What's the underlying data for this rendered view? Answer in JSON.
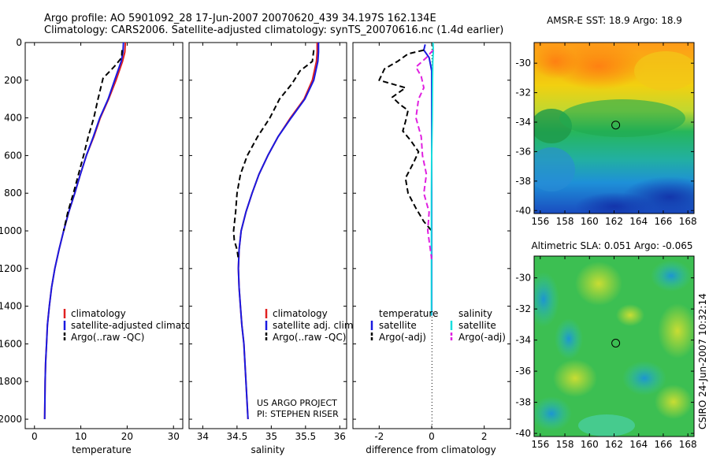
{
  "header": {
    "title_line1": "Argo profile: AO 5901092_28 17-Jun-2007 20070620_439 34.197S 162.134E",
    "title_line2": "Climatology: CARS2006. Satellite-adjusted climatology: synTS_20070616.nc (1.4d earlier)"
  },
  "footer": {
    "project_line1": "US ARGO PROJECT",
    "project_line2": "PI: STEPHEN RISER",
    "timestamp": "CSIRO 24-Jun-2007 10:32:14"
  },
  "colors": {
    "climatology": "#e02020",
    "satellite": "#1a1ae0",
    "argo": "#000000",
    "satellite_salinity": "#18dede",
    "argo_salinity": "#e020e0"
  },
  "chart_data": [
    {
      "type": "line",
      "id": "temperature",
      "xlabel": "temperature",
      "ylabel": "",
      "xlim": [
        -2,
        32
      ],
      "ylim": [
        2050,
        0
      ],
      "xticks": [
        0,
        10,
        20,
        30
      ],
      "yticks": [
        0,
        200,
        400,
        600,
        800,
        1000,
        1200,
        1400,
        1600,
        1800,
        2000
      ],
      "legend": [
        "climatology",
        "satellite-adjusted climatology",
        "Argo(..raw -QC)"
      ],
      "series": [
        {
          "name": "climatology",
          "color": "#e02020",
          "dash": "solid",
          "x": [
            19.6,
            19.5,
            19.0,
            17.6,
            16.0,
            14.2,
            12.8,
            11.2,
            9.9,
            8.7,
            7.4,
            6.3,
            5.3,
            4.4,
            3.7,
            3.2,
            2.8,
            2.6,
            2.4,
            2.3,
            2.2
          ],
          "y": [
            0,
            50,
            100,
            200,
            300,
            400,
            500,
            600,
            700,
            800,
            900,
            1000,
            1100,
            1200,
            1300,
            1400,
            1500,
            1600,
            1700,
            1800,
            2000
          ]
        },
        {
          "name": "satellite-adjusted climatology",
          "color": "#1a1ae0",
          "dash": "solid",
          "x": [
            19.2,
            19.1,
            18.7,
            17.3,
            15.9,
            14.1,
            12.7,
            11.2,
            9.9,
            8.7,
            7.4,
            6.3,
            5.3,
            4.4,
            3.7,
            3.2,
            2.8,
            2.6,
            2.4,
            2.3,
            2.2
          ],
          "y": [
            0,
            50,
            100,
            200,
            300,
            400,
            500,
            600,
            700,
            800,
            900,
            1000,
            1100,
            1200,
            1300,
            1400,
            1500,
            1600,
            1700,
            1800,
            2000
          ]
        },
        {
          "name": "Argo(..raw -QC)",
          "color": "#000000",
          "dash": "dash",
          "x": [
            18.9,
            18.8,
            17.5,
            14.8,
            13.7,
            12.8,
            11.6,
            10.6,
            9.5,
            8.4,
            7.2,
            6.3
          ],
          "y": [
            40,
            80,
            120,
            190,
            300,
            400,
            500,
            600,
            700,
            800,
            900,
            1000
          ]
        }
      ]
    },
    {
      "type": "line",
      "id": "salinity",
      "xlabel": "salinity",
      "ylabel": "",
      "xlim": [
        33.8,
        36.1
      ],
      "ylim": [
        2050,
        0
      ],
      "xticks": [
        34,
        34.5,
        35,
        35.5,
        36
      ],
      "legend": [
        "climatology",
        "satellite adj. clim.",
        "Argo(..raw -QC)"
      ],
      "series": [
        {
          "name": "climatology",
          "color": "#e02020",
          "dash": "solid",
          "x": [
            35.67,
            35.67,
            35.66,
            35.6,
            35.48,
            35.28,
            35.1,
            34.95,
            34.82,
            34.72,
            34.63,
            34.56,
            34.53,
            34.52,
            34.53,
            34.55,
            34.57,
            34.6,
            34.63,
            34.66
          ],
          "y": [
            0,
            50,
            100,
            200,
            300,
            400,
            500,
            600,
            700,
            800,
            900,
            1000,
            1100,
            1200,
            1300,
            1400,
            1500,
            1600,
            1800,
            2000
          ]
        },
        {
          "name": "satellite adj. clim.",
          "color": "#1a1ae0",
          "dash": "solid",
          "x": [
            35.69,
            35.69,
            35.68,
            35.62,
            35.49,
            35.29,
            35.1,
            34.95,
            34.82,
            34.72,
            34.63,
            34.56,
            34.53,
            34.52,
            34.53,
            34.55,
            34.57,
            34.6,
            34.63,
            34.66
          ],
          "y": [
            0,
            50,
            100,
            200,
            300,
            400,
            500,
            600,
            700,
            800,
            900,
            1000,
            1100,
            1200,
            1300,
            1400,
            1500,
            1600,
            1800,
            2000
          ]
        },
        {
          "name": "Argo(..raw -QC)",
          "color": "#000000",
          "dash": "dash",
          "x": [
            35.62,
            35.6,
            35.42,
            35.3,
            35.12,
            34.98,
            34.8,
            34.65,
            34.55,
            34.5,
            34.48,
            34.45,
            34.46,
            34.5,
            34.52
          ],
          "y": [
            40,
            100,
            150,
            220,
            300,
            400,
            500,
            600,
            700,
            800,
            900,
            1000,
            1050,
            1100,
            1150
          ]
        }
      ]
    },
    {
      "type": "line",
      "id": "difference",
      "xlabel": "difference from climatology",
      "ylabel": "",
      "xlim": [
        -3.0,
        3.0
      ],
      "ylim": [
        2050,
        0
      ],
      "xticks": [
        -2,
        0,
        2
      ],
      "legend_headers": [
        "temperature",
        "salinity"
      ],
      "legend": [
        "satellite",
        "Argo(-adj)",
        "satellite",
        "Argo(-adj)"
      ],
      "series": [
        {
          "name": "satellite",
          "variable": "temperature",
          "color": "#1a1ae0",
          "dash": "solid",
          "x": [
            -0.25,
            -0.3,
            -0.1,
            0,
            0,
            0,
            0,
            0,
            0,
            0,
            0,
            0
          ],
          "y": [
            10,
            40,
            80,
            150,
            300,
            500,
            700,
            900,
            1100,
            1300,
            1400,
            1450
          ]
        },
        {
          "name": "Argo(-adj)",
          "variable": "temperature",
          "color": "#000000",
          "dash": "dash",
          "x": [
            -0.3,
            -0.9,
            -1.3,
            -1.8,
            -2.0,
            -1.0,
            -1.5,
            -1.2,
            -0.9,
            -1.0,
            -1.1,
            -0.8,
            -0.5,
            -0.7,
            -1.0,
            -0.9,
            -0.6,
            -0.3,
            0
          ],
          "y": [
            40,
            60,
            100,
            140,
            200,
            240,
            290,
            330,
            360,
            420,
            470,
            520,
            580,
            640,
            720,
            800,
            880,
            950,
            1000
          ]
        },
        {
          "name": "satellite",
          "variable": "salinity",
          "color": "#18dede",
          "dash": "solid",
          "x": [
            0.05,
            0.06,
            0.04,
            0.03,
            0.02,
            0.0,
            -0.01,
            -0.01,
            -0.01,
            -0.01,
            -0.01,
            -0.01
          ],
          "y": [
            0,
            50,
            100,
            200,
            400,
            600,
            800,
            1000,
            1200,
            1300,
            1400,
            1450
          ]
        },
        {
          "name": "Argo(-adj)",
          "variable": "salinity",
          "color": "#e020e0",
          "dash": "dash",
          "x": [
            0.05,
            -0.2,
            -0.6,
            -0.4,
            -0.3,
            -0.5,
            -0.6,
            -0.4,
            -0.35,
            -0.2,
            -0.3,
            -0.1,
            -0.15,
            -0.05,
            0
          ],
          "y": [
            40,
            80,
            130,
            180,
            240,
            300,
            400,
            500,
            600,
            700,
            800,
            900,
            1000,
            1100,
            1150
          ]
        }
      ]
    },
    {
      "type": "heatmap",
      "id": "sst_map",
      "title": "AMSR-E SST: 18.9 Argo: 18.9",
      "xlim": [
        155.5,
        168.5
      ],
      "ylim": [
        -40.2,
        -28.6
      ],
      "xticks": [
        156,
        158,
        160,
        162,
        164,
        166,
        168
      ],
      "yticks": [
        -30,
        -32,
        -34,
        -36,
        -38,
        -40
      ],
      "marker": {
        "lon": 162.134,
        "lat": -34.197
      }
    },
    {
      "type": "heatmap",
      "id": "sla_map",
      "title": "Altimetric SLA: 0.051 Argo: -0.065",
      "xlim": [
        155.5,
        168.5
      ],
      "ylim": [
        -40.2,
        -28.6
      ],
      "xticks": [
        156,
        158,
        160,
        162,
        164,
        166,
        168
      ],
      "yticks": [
        -30,
        -32,
        -34,
        -36,
        -38,
        -40
      ],
      "marker": {
        "lon": 162.134,
        "lat": -34.197
      }
    }
  ]
}
